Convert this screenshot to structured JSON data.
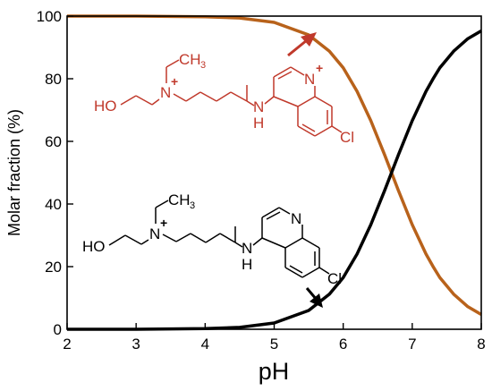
{
  "chart_data": {
    "type": "line",
    "xlabel": "pH",
    "ylabel": "Molar fraction (%)",
    "xlim": [
      2,
      8
    ],
    "ylim": [
      0,
      100
    ],
    "xticks": [
      2,
      3,
      4,
      5,
      6,
      7,
      8
    ],
    "yticks": [
      0,
      20,
      40,
      60,
      80,
      100
    ],
    "grid": false,
    "legend": "none",
    "series": [
      {
        "color": "#b8621b",
        "x": [
          2.0,
          3.0,
          4.0,
          4.5,
          5.0,
          5.5,
          5.8,
          6.0,
          6.2,
          6.4,
          6.6,
          6.8,
          7.0,
          7.2,
          7.3,
          7.4,
          7.6,
          7.8,
          8.0
        ],
        "values": [
          100.0,
          100.0,
          99.8,
          99.4,
          98.0,
          94.0,
          88.8,
          83.5,
          76.0,
          66.6,
          55.7,
          44.3,
          33.4,
          24.0,
          20.1,
          16.5,
          11.2,
          7.3,
          4.7
        ]
      },
      {
        "color": "#000000",
        "x": [
          2.0,
          3.0,
          4.0,
          4.5,
          5.0,
          5.5,
          5.8,
          6.0,
          6.2,
          6.4,
          6.6,
          6.8,
          7.0,
          7.2,
          7.3,
          7.4,
          7.6,
          7.8,
          8.0
        ],
        "values": [
          0.0,
          0.0,
          0.2,
          0.6,
          2.0,
          6.0,
          11.2,
          16.5,
          24.0,
          33.4,
          44.3,
          55.7,
          66.6,
          76.0,
          79.9,
          83.5,
          88.8,
          92.7,
          95.3
        ]
      }
    ]
  },
  "structures": {
    "protonated": {
      "color": "#c0392b",
      "ho": "HO",
      "n_plus": "N",
      "n_charge": "+",
      "ch3": "CH",
      "ch3_sub": "3",
      "nh": "N",
      "nh_h": "H",
      "ring_n": "N",
      "ring_charge": "+",
      "cl": "Cl"
    },
    "neutral": {
      "color": "#000000",
      "ho": "HO",
      "n_plus": "N",
      "n_charge": "+",
      "ch3": "CH",
      "ch3_sub": "3",
      "nh": "N",
      "nh_h": "H",
      "ring_n": "N",
      "cl": "Cl"
    }
  },
  "arrows": {
    "protonated_color": "#c0392b",
    "neutral_color": "#000000"
  }
}
